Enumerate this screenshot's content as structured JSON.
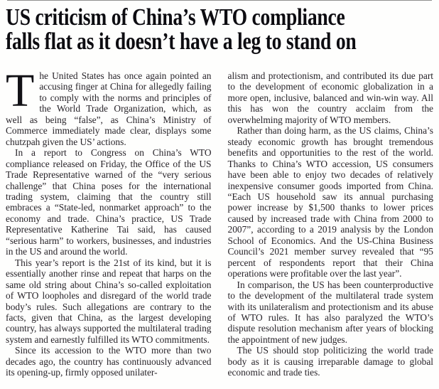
{
  "article": {
    "headline_line1": "US criticism of China’s WTO compliance",
    "headline_line2": "falls flat as it doesn’t have a leg to stand on",
    "drop_cap": "T",
    "left_column": {
      "p1_rest": "he United States has once again pointed an accusing finger at China for allegedly failing to comply with the norms and principles of the World Trade Organization, which, as well as being “false”, as China’s Ministry of Commerce immediately made clear, displays some chutzpah given the US’ actions.",
      "p2": "In a report to Congress on China’s WTO compliance released on Friday, the Office of the US Trade Representative warned of the “very serious challenge” that China poses for the international trading system, claiming that the country still embraces a “State-led, nonmarket approach” to the economy and trade. China’s practice, US Trade Representative Katherine Tai said, has caused “serious harm” to workers, businesses, and industries in the US and around the world.",
      "p3": "This year’s report is the 21st of its kind, but it is essentially another rinse and repeat that harps on the same old string about China’s so-called exploitation of WTO loopholes and disregard of the world trade body’s rules. Such allegations are contrary to the facts, given that China, as the largest developing country, has always supported the multilateral trading system and earnestly fulfilled its WTO commitments.",
      "p4_part1": "Since its accession to the WTO more than two decades ago, the country has continuously advanced its opening-up, firmly opposed unilater-"
    },
    "right_column": {
      "p4_part2": "alism and protectionism, and contributed its due part to the development of economic globalization in a more open, inclusive, balanced and win-win way. All this has won the country acclaim from the overwhelming majority of WTO members.",
      "p5": "Rather than doing harm, as the US claims, China’s steady economic growth has brought tremendous benefits and opportunities to the rest of the world. Thanks to China’s WTO accession, US consumers have been able to enjoy two decades of relatively inexpensive consumer goods imported from China. “Each US household saw its annual purchasing power increase by $1,500 thanks to lower prices caused by increased trade with China from 2000 to 2007”, according to a 2019 analysis by the London School of Economics. And the US-China Business Council’s 2021 member survey revealed that “95 percent of respondents report that their China operations were profitable over the last year”.",
      "p6": "In comparison, the US has been counterproductive to the development of the multilateral trade system with its unilateralism and protectionism and its abuse of WTO rules. It has also paralyzed the WTO’s dispute resolution mechanism after years of blocking the appointment of new judges.",
      "p7": "The US should stop politicizing the world trade body as it is causing irreparable damage to global economic and trade ties."
    }
  },
  "colors": {
    "background": "#fefefd",
    "headline_text": "#0d0c11",
    "body_text": "#272329",
    "top_rule": "#8f8f8f"
  }
}
